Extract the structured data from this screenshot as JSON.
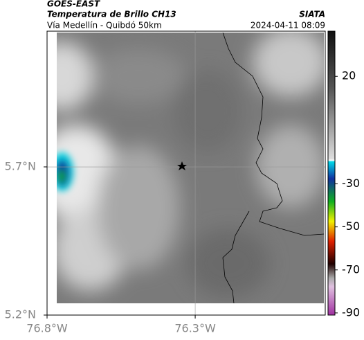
{
  "header": {
    "title": "GOES-EAST",
    "subtitle": "Temperatura de Brillo CH13",
    "route": "Vía Medellín - Quibdó 50km",
    "source": "SIATA",
    "timestamp": "2024-04-11 08:09"
  },
  "map": {
    "latlim": [
      5.2,
      6.158
    ],
    "lonlim": [
      -76.8,
      -75.861
    ],
    "lat_ticks": [
      {
        "value": 5.7,
        "label": "5.7°N"
      },
      {
        "value": 5.2,
        "label": "5.2°N"
      }
    ],
    "lon_ticks": [
      {
        "value": -76.8,
        "label": "76.8°W"
      },
      {
        "value": -76.3,
        "label": "76.3°W"
      }
    ],
    "colorbar": {
      "lim": [
        41,
        -91
      ],
      "ticks": [
        20,
        -30,
        -50,
        -70,
        -90
      ]
    }
  }
}
